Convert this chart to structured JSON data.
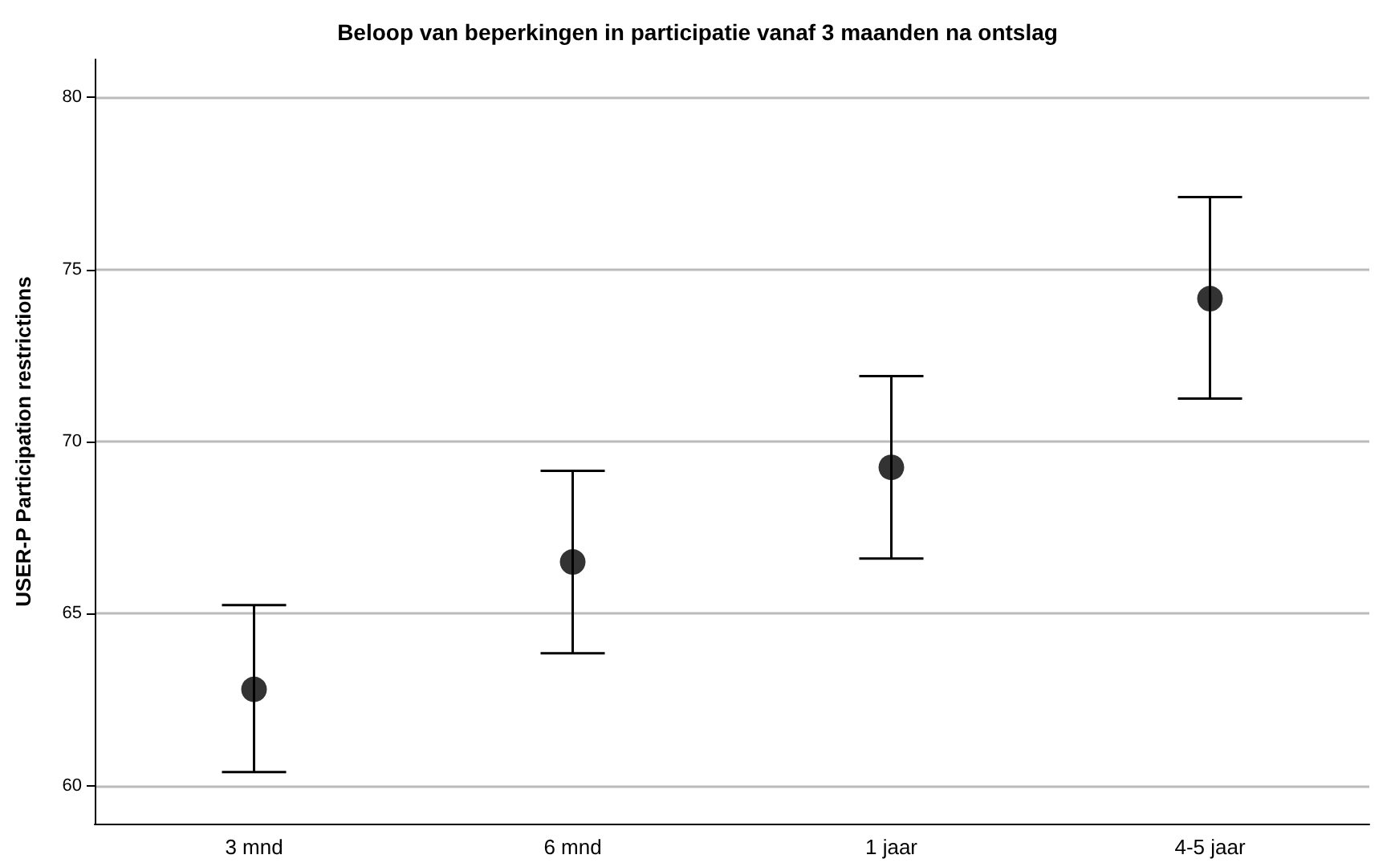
{
  "chart_data": {
    "type": "scatter",
    "title": "Beloop van beperkingen in participatie vanaf 3 maanden na ontslag",
    "ylabel": "USER-P Participation restrictions",
    "categories": [
      "3 mnd",
      "6 mnd",
      "1 jaar",
      "4-5 jaar"
    ],
    "series": [
      {
        "color": "#000000",
        "values": [
          62.8,
          66.5,
          69.25,
          74.15
        ],
        "errors": [
          [
            60.4,
            65.25
          ],
          [
            63.85,
            69.15
          ],
          [
            66.6,
            71.9
          ],
          [
            71.25,
            77.1
          ]
        ]
      }
    ],
    "ylim": [
      58.9,
      81.1
    ],
    "yticks": [
      60,
      65,
      70,
      75,
      80
    ],
    "grid": "y",
    "marker": "circle"
  }
}
